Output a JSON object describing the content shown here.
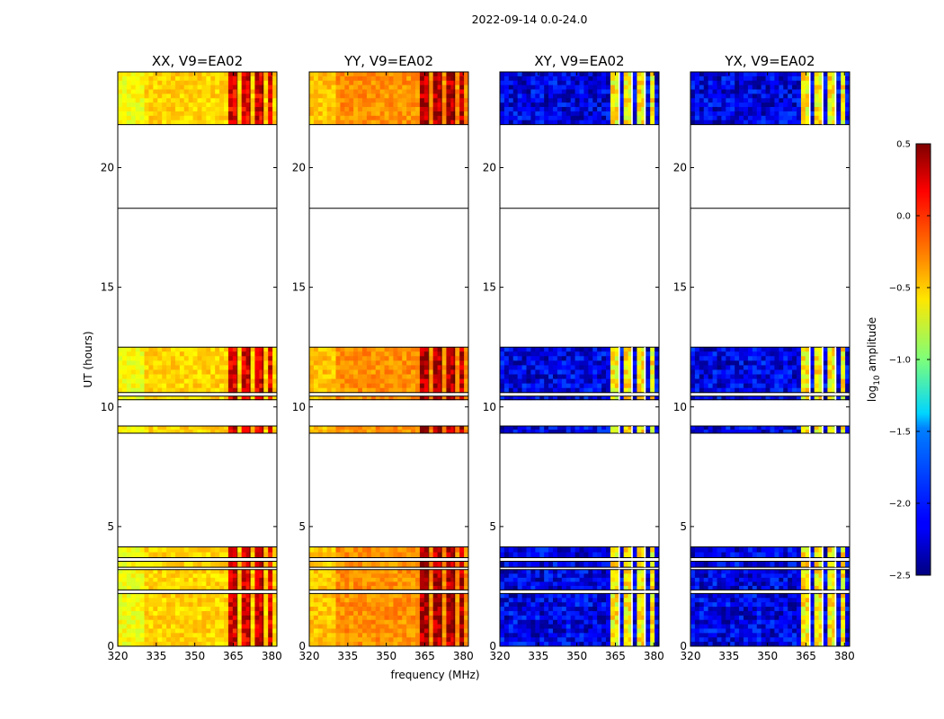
{
  "chart_data": {
    "type": "heatmap",
    "suptitle": "2022-09-14 0.0-24.0",
    "xlabel": "frequency (MHz)",
    "ylabel": "UT (hours)",
    "xlim": [
      320,
      382
    ],
    "ylim": [
      0,
      24
    ],
    "xticks": [
      320,
      335,
      350,
      365,
      380
    ],
    "yticks": [
      0,
      5,
      10,
      15,
      20
    ],
    "colorbar": {
      "label_prefix": "log",
      "label_sub": "10",
      "label_suffix": " amplitude",
      "range": [
        -2.5,
        0.5
      ],
      "ticks": [
        "0.5",
        "0.0",
        "−0.5",
        "−1.0",
        "−1.5",
        "−2.0",
        "−2.5"
      ],
      "colormap": "jet"
    },
    "data_blocks_ut": [
      [
        0.0,
        2.2
      ],
      [
        2.35,
        3.2
      ],
      [
        3.3,
        3.55
      ],
      [
        3.7,
        4.15
      ],
      [
        8.9,
        9.2
      ],
      [
        10.3,
        10.45
      ],
      [
        10.6,
        12.5
      ],
      [
        21.8,
        24.0
      ]
    ],
    "flag_lines_ut": [
      18.3
    ],
    "strong_channel_ranges_mhz": [
      [
        363,
        367
      ],
      [
        368,
        372
      ],
      [
        373,
        377
      ],
      [
        378,
        381
      ]
    ],
    "panels": [
      {
        "title": "XX, V9=EA02",
        "polarization": "XX",
        "base_level": -0.5,
        "channel_level": 0.2
      },
      {
        "title": "YY, V9=EA02",
        "polarization": "YY",
        "base_level": -0.3,
        "channel_level": 0.35
      },
      {
        "title": "XY, V9=EA02",
        "polarization": "XY",
        "base_level": -2.2,
        "channel_level": -0.6
      },
      {
        "title": "YX, V9=EA02",
        "polarization": "YX",
        "base_level": -2.2,
        "channel_level": -0.6
      }
    ]
  }
}
